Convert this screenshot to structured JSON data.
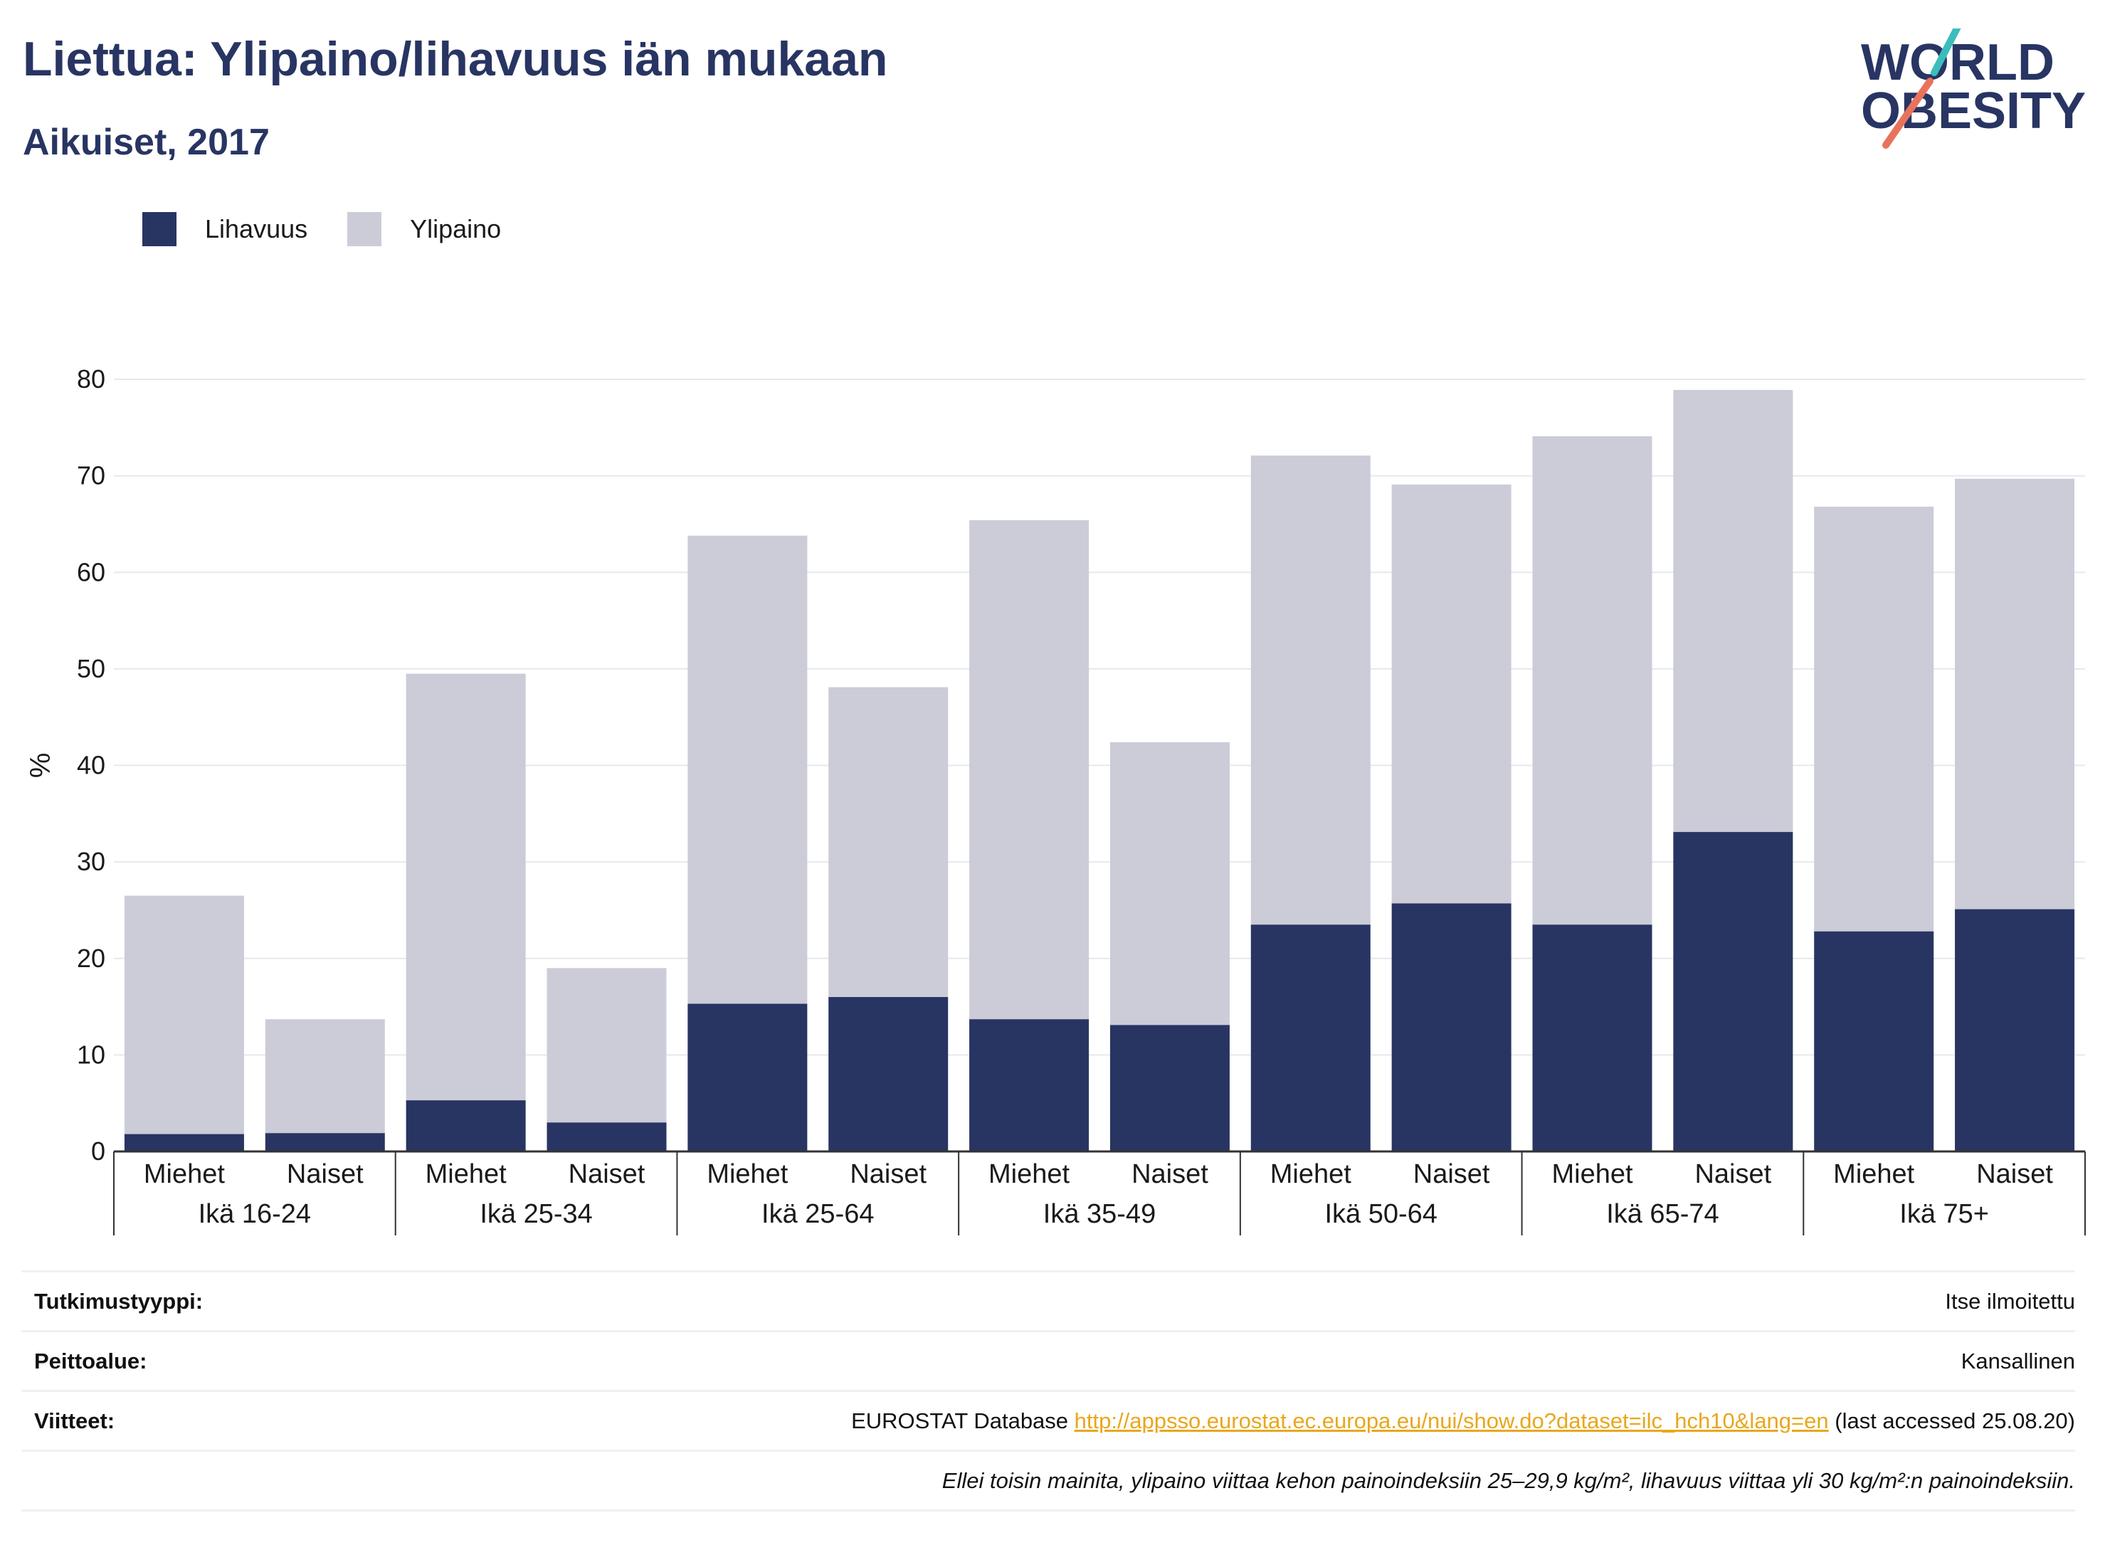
{
  "title": "Liettua: Ylipaino/lihavuus iän mukaan",
  "subtitle": "Aikuiset, 2017",
  "logo": {
    "line1": "WORLD",
    "line2": "OBESITY",
    "colors": {
      "text": "#283563",
      "slash_top": "#3bbdbd",
      "slash_bottom": "#e8735c"
    }
  },
  "legend": [
    {
      "name": "Lihavuus",
      "color": "#283563"
    },
    {
      "name": "Ylipaino",
      "color": "#cbccd8"
    }
  ],
  "chart_data": {
    "type": "bar",
    "stacked": true,
    "ylabel": "%",
    "ylim": [
      0,
      80
    ],
    "yticks": [
      0,
      10,
      20,
      30,
      40,
      50,
      60,
      70,
      80
    ],
    "grid": true,
    "legend_position": "top-left",
    "groups": [
      {
        "label": "Ikä 16-24",
        "bars": [
          {
            "label": "Miehet",
            "lihavuus": 1.8,
            "total": 26.5
          },
          {
            "label": "Naiset",
            "lihavuus": 1.9,
            "total": 13.7
          }
        ]
      },
      {
        "label": "Ikä 25-34",
        "bars": [
          {
            "label": "Miehet",
            "lihavuus": 5.3,
            "total": 49.5
          },
          {
            "label": "Naiset",
            "lihavuus": 3.0,
            "total": 19.0
          }
        ]
      },
      {
        "label": "Ikä 25-64",
        "bars": [
          {
            "label": "Miehet",
            "lihavuus": 15.3,
            "total": 63.8
          },
          {
            "label": "Naiset",
            "lihavuus": 16.0,
            "total": 48.1
          }
        ]
      },
      {
        "label": "Ikä 35-49",
        "bars": [
          {
            "label": "Miehet",
            "lihavuus": 13.7,
            "total": 65.4
          },
          {
            "label": "Naiset",
            "lihavuus": 13.1,
            "total": 42.4
          }
        ]
      },
      {
        "label": "Ikä 50-64",
        "bars": [
          {
            "label": "Miehet",
            "lihavuus": 23.5,
            "total": 72.1
          },
          {
            "label": "Naiset",
            "lihavuus": 25.7,
            "total": 69.1
          }
        ]
      },
      {
        "label": "Ikä 65-74",
        "bars": [
          {
            "label": "Miehet",
            "lihavuus": 23.5,
            "total": 74.1
          },
          {
            "label": "Naiset",
            "lihavuus": 33.1,
            "total": 78.9
          }
        ]
      },
      {
        "label": "Ikä 75+",
        "bars": [
          {
            "label": "Miehet",
            "lihavuus": 22.8,
            "total": 66.8
          },
          {
            "label": "Naiset",
            "lihavuus": 25.1,
            "total": 69.7
          }
        ]
      }
    ]
  },
  "info": {
    "study_type_label": "Tutkimustyyppi:",
    "study_type_value": "Itse ilmoitettu",
    "coverage_label": "Peittoalue:",
    "coverage_value": "Kansallinen",
    "references_label": "Viitteet:",
    "references_prefix": "EUROSTAT Database",
    "references_link": "http://appsso.eurostat.ec.europa.eu/nui/show.do?dataset=ilc_hch10&lang=en",
    "references_suffix": "(last accessed 25.08.20)",
    "note": "Ellei toisin mainita, ylipaino viittaa kehon painoindeksiin 25–29,9 kg/m², lihavuus viittaa yli 30 kg/m²:n painoindeksiin."
  }
}
